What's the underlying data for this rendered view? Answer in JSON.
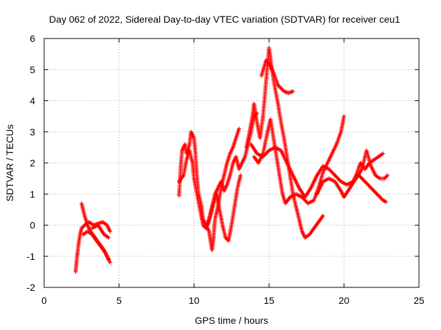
{
  "chart_data": {
    "type": "scatter",
    "title": "Day 062 of 2022, Sidereal Day-to-day VTEC variation (SDTVAR) for receiver ceu1",
    "xlabel": "GPS time / hours",
    "ylabel": "SDTVAR / TECUs",
    "xlim": [
      0,
      25
    ],
    "ylim": [
      -2,
      6
    ],
    "xticks": [
      "0",
      "5",
      "10",
      "15",
      "20",
      "25"
    ],
    "yticks": [
      "-2",
      "-1",
      "0",
      "1",
      "2",
      "3",
      "4",
      "5",
      "6"
    ],
    "grid": true,
    "marker": "plus",
    "color": "#ff0000",
    "series": [
      {
        "values": [
          [
            2.1,
            -1.5
          ],
          [
            2.2,
            -1.0
          ],
          [
            2.3,
            -0.6
          ],
          [
            2.4,
            -0.3
          ],
          [
            2.5,
            -0.1
          ],
          [
            2.7,
            0.0
          ],
          [
            3.0,
            0.1
          ],
          [
            3.3,
            0.0
          ],
          [
            3.6,
            0.05
          ],
          [
            3.9,
            0.1
          ],
          [
            4.2,
            0.0
          ],
          [
            4.4,
            -0.2
          ]
        ]
      },
      {
        "values": [
          [
            2.5,
            0.7
          ],
          [
            2.7,
            0.3
          ],
          [
            2.9,
            0.0
          ],
          [
            3.1,
            -0.2
          ],
          [
            3.4,
            -0.4
          ],
          [
            3.7,
            -0.6
          ],
          [
            4.0,
            -0.8
          ],
          [
            4.3,
            -1.1
          ]
        ]
      },
      {
        "values": [
          [
            2.6,
            -0.3
          ],
          [
            2.9,
            -0.2
          ],
          [
            3.2,
            -0.3
          ],
          [
            3.5,
            -0.5
          ],
          [
            3.8,
            -0.7
          ],
          [
            4.1,
            -0.9
          ],
          [
            4.4,
            -1.2
          ]
        ]
      },
      {
        "values": [
          [
            3.2,
            -0.1
          ],
          [
            3.6,
            0.0
          ],
          [
            4.0,
            -0.3
          ],
          [
            4.3,
            -0.4
          ]
        ]
      },
      {
        "values": [
          [
            9.0,
            0.95
          ],
          [
            9.1,
            1.8
          ],
          [
            9.2,
            2.4
          ],
          [
            9.4,
            2.6
          ],
          [
            9.5,
            2.3
          ],
          [
            9.7,
            2.6
          ],
          [
            9.8,
            3.0
          ],
          [
            10.0,
            2.8
          ],
          [
            10.1,
            2.3
          ],
          [
            10.2,
            1.5
          ],
          [
            10.3,
            1.0
          ],
          [
            10.5,
            0.6
          ],
          [
            10.6,
            0.2
          ],
          [
            10.8,
            0.0
          ],
          [
            11.0,
            -0.2
          ],
          [
            11.1,
            -0.5
          ],
          [
            11.2,
            -0.8
          ],
          [
            11.3,
            -0.4
          ],
          [
            11.4,
            0.2
          ],
          [
            11.6,
            0.6
          ],
          [
            11.8,
            1.2
          ],
          [
            12.0,
            1.6
          ],
          [
            12.2,
            2.0
          ],
          [
            12.4,
            2.3
          ],
          [
            12.6,
            2.5
          ],
          [
            12.8,
            2.8
          ],
          [
            13.0,
            3.1
          ]
        ]
      },
      {
        "values": [
          [
            9.0,
            1.4
          ],
          [
            9.3,
            1.6
          ],
          [
            9.5,
            2.1
          ],
          [
            9.7,
            2.4
          ],
          [
            9.9,
            2.0
          ],
          [
            10.0,
            1.5
          ],
          [
            10.2,
            1.0
          ],
          [
            10.4,
            0.5
          ],
          [
            10.6,
            0.0
          ],
          [
            10.8,
            -0.1
          ],
          [
            11.0,
            0.2
          ],
          [
            11.2,
            0.6
          ],
          [
            11.4,
            1.0
          ],
          [
            11.6,
            1.2
          ],
          [
            11.8,
            1.4
          ],
          [
            12.0,
            1.1
          ],
          [
            12.2,
            1.3
          ],
          [
            12.4,
            1.6
          ],
          [
            12.6,
            2.0
          ],
          [
            12.8,
            2.2
          ],
          [
            13.0,
            1.8
          ],
          [
            13.2,
            2.0
          ],
          [
            13.4,
            2.2
          ],
          [
            13.6,
            2.6
          ],
          [
            13.8,
            3.0
          ],
          [
            14.0,
            3.5
          ],
          [
            14.2,
            3.6
          ]
        ]
      },
      {
        "values": [
          [
            10.9,
            0.0
          ],
          [
            11.1,
            0.3
          ],
          [
            11.3,
            0.7
          ],
          [
            11.5,
            1.0
          ],
          [
            11.7,
            0.5
          ],
          [
            11.9,
            0.0
          ],
          [
            12.1,
            -0.4
          ],
          [
            12.3,
            -0.5
          ],
          [
            12.5,
            0.0
          ],
          [
            12.7,
            0.6
          ],
          [
            12.9,
            1.2
          ],
          [
            13.1,
            1.6
          ]
        ]
      },
      {
        "values": [
          [
            13.5,
            2.5
          ],
          [
            13.7,
            3.0
          ],
          [
            13.9,
            3.5
          ],
          [
            14.0,
            3.9
          ],
          [
            14.2,
            3.3
          ],
          [
            14.4,
            2.8
          ],
          [
            14.6,
            3.5
          ],
          [
            14.8,
            4.6
          ],
          [
            15.0,
            5.7
          ],
          [
            15.2,
            5.0
          ],
          [
            15.4,
            4.4
          ],
          [
            15.6,
            3.9
          ],
          [
            15.8,
            3.3
          ],
          [
            16.0,
            2.8
          ],
          [
            16.2,
            2.2
          ],
          [
            16.4,
            1.6
          ],
          [
            16.6,
            1.0
          ],
          [
            16.8,
            0.6
          ],
          [
            17.0,
            0.2
          ],
          [
            17.2,
            -0.2
          ],
          [
            17.4,
            -0.4
          ],
          [
            17.7,
            -0.3
          ],
          [
            18.0,
            -0.1
          ],
          [
            18.3,
            0.1
          ],
          [
            18.6,
            0.3
          ]
        ]
      },
      {
        "values": [
          [
            14.5,
            4.8
          ],
          [
            14.8,
            5.3
          ],
          [
            15.0,
            5.2
          ],
          [
            15.3,
            4.9
          ],
          [
            15.6,
            4.5
          ],
          [
            16.0,
            4.3
          ],
          [
            16.3,
            4.25
          ],
          [
            16.6,
            4.3
          ]
        ]
      },
      {
        "values": [
          [
            13.8,
            2.6
          ],
          [
            14.2,
            2.3
          ],
          [
            14.6,
            2.2
          ],
          [
            15.0,
            2.4
          ],
          [
            15.4,
            2.5
          ],
          [
            15.8,
            2.4
          ],
          [
            16.2,
            2.0
          ],
          [
            16.6,
            1.6
          ],
          [
            17.0,
            1.2
          ],
          [
            17.4,
            0.9
          ],
          [
            17.8,
            1.2
          ],
          [
            18.2,
            1.6
          ],
          [
            18.6,
            1.9
          ],
          [
            19.0,
            1.8
          ],
          [
            19.4,
            1.6
          ],
          [
            19.8,
            1.4
          ],
          [
            20.2,
            1.3
          ],
          [
            20.6,
            1.4
          ],
          [
            21.0,
            1.6
          ],
          [
            21.4,
            1.4
          ],
          [
            21.8,
            1.2
          ],
          [
            22.2,
            1.0
          ],
          [
            22.6,
            0.8
          ],
          [
            22.8,
            0.75
          ]
        ]
      },
      {
        "values": [
          [
            14.0,
            2.2
          ],
          [
            14.3,
            2.0
          ],
          [
            14.6,
            2.3
          ],
          [
            14.9,
            3.0
          ],
          [
            15.1,
            3.4
          ],
          [
            15.3,
            2.8
          ],
          [
            15.5,
            2.2
          ],
          [
            15.7,
            1.6
          ],
          [
            15.9,
            1.0
          ],
          [
            16.1,
            0.7
          ],
          [
            16.4,
            0.9
          ],
          [
            16.8,
            1.0
          ],
          [
            17.2,
            0.9
          ],
          [
            17.6,
            0.7
          ],
          [
            18.0,
            0.8
          ],
          [
            18.3,
            1.2
          ],
          [
            18.6,
            1.7
          ],
          [
            18.9,
            2.0
          ],
          [
            19.2,
            2.3
          ],
          [
            19.5,
            2.6
          ],
          [
            19.8,
            3.0
          ],
          [
            20.0,
            3.5
          ]
        ]
      },
      {
        "values": [
          [
            18.2,
            1.0
          ],
          [
            18.6,
            1.4
          ],
          [
            19.0,
            1.5
          ],
          [
            19.4,
            1.4
          ],
          [
            19.8,
            1.1
          ],
          [
            20.0,
            0.9
          ],
          [
            20.4,
            1.2
          ],
          [
            20.8,
            1.5
          ],
          [
            21.2,
            1.8
          ],
          [
            21.5,
            2.4
          ],
          [
            21.8,
            1.9
          ],
          [
            22.1,
            1.6
          ],
          [
            22.4,
            1.5
          ],
          [
            22.7,
            1.5
          ],
          [
            22.9,
            1.6
          ]
        ]
      },
      {
        "values": [
          [
            20.5,
            1.3
          ],
          [
            20.8,
            1.6
          ],
          [
            21.1,
            2.0
          ],
          [
            21.4,
            1.8
          ],
          [
            21.7,
            2.0
          ],
          [
            22.0,
            2.1
          ],
          [
            22.3,
            2.2
          ],
          [
            22.6,
            2.3
          ]
        ]
      }
    ]
  }
}
